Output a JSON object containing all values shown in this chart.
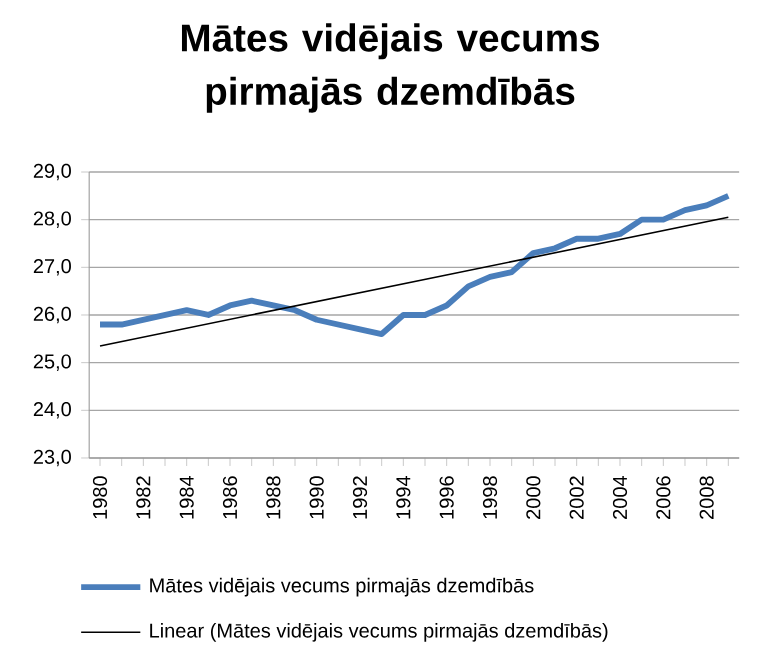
{
  "chart_data": {
    "type": "line",
    "title": "Mātes vidējais vecums pirmajās dzemdībās",
    "categories": [
      "1980",
      null,
      "1982",
      null,
      "1984",
      null,
      "1986",
      null,
      "1988",
      null,
      "1990",
      null,
      "1992",
      null,
      "1994",
      null,
      "1996",
      null,
      "1998",
      null,
      "2000",
      null,
      "2002",
      null,
      "2004",
      null,
      "2006",
      null,
      "2008",
      null
    ],
    "series": [
      {
        "name": "Mātes vidējais vecums pirmajās dzemdībās",
        "color": "#4a7ebb",
        "values": [
          25.8,
          25.8,
          25.9,
          26.0,
          26.1,
          26.0,
          26.2,
          26.3,
          26.2,
          26.1,
          25.9,
          25.8,
          25.7,
          25.6,
          26.0,
          26.0,
          26.2,
          26.6,
          26.8,
          26.9,
          27.3,
          27.4,
          27.6,
          27.6,
          27.7,
          28.0,
          28.0,
          28.2,
          28.3,
          28.5
        ]
      },
      {
        "name": "Linear (Mātes vidējais vecums pirmajās dzemdībās)",
        "color": "#000000",
        "values": [
          25.35,
          null,
          null,
          null,
          null,
          null,
          null,
          null,
          null,
          null,
          null,
          null,
          null,
          null,
          null,
          null,
          null,
          null,
          null,
          null,
          null,
          null,
          null,
          null,
          null,
          null,
          null,
          null,
          null,
          28.05
        ]
      }
    ],
    "ylim": [
      23,
      29
    ],
    "yticks": [
      {
        "value": 23,
        "label": "23,0"
      },
      {
        "value": 24,
        "label": "24,0"
      },
      {
        "value": 25,
        "label": "25,0"
      },
      {
        "value": 26,
        "label": "26,0"
      },
      {
        "value": 27,
        "label": "27,0"
      },
      {
        "value": 28,
        "label": "28,0"
      },
      {
        "value": 29,
        "label": "29,0"
      }
    ],
    "grid": "y",
    "legend": "bottom",
    "marker": "none",
    "line_style": "solid"
  }
}
